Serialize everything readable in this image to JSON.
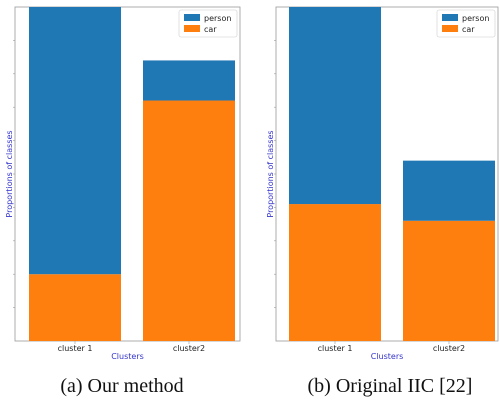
{
  "chart_data": [
    {
      "type": "bar",
      "stacked": true,
      "categories": [
        "cluster 1",
        "cluster2"
      ],
      "series": [
        {
          "name": "car",
          "values": [
            0.2,
            0.72
          ],
          "color": "#ff7f0e"
        },
        {
          "name": "person",
          "values": [
            0.8,
            0.12
          ],
          "color": "#1f77b4"
        }
      ],
      "legend": [
        "person",
        "car"
      ],
      "legend_position": "top-right",
      "xlabel": "Clusters",
      "ylabel": "Proportions of classes",
      "label_color": "#3333cc",
      "ylim": [
        0,
        1.0
      ],
      "y_tick_labels_shown": false,
      "grid": false,
      "caption": "(a) Our method"
    },
    {
      "type": "bar",
      "stacked": true,
      "categories": [
        "cluster 1",
        "cluster2"
      ],
      "series": [
        {
          "name": "car",
          "values": [
            0.41,
            0.36
          ],
          "color": "#ff7f0e"
        },
        {
          "name": "person",
          "values": [
            0.59,
            0.18
          ],
          "color": "#1f77b4"
        }
      ],
      "legend": [
        "person",
        "car"
      ],
      "legend_position": "top-right",
      "xlabel": "Clusters",
      "ylabel": "Proportions of classes",
      "label_color": "#3333cc",
      "ylim": [
        0,
        1.0
      ],
      "y_tick_labels_shown": false,
      "grid": false,
      "caption": "(b) Original IIC [22]"
    }
  ]
}
